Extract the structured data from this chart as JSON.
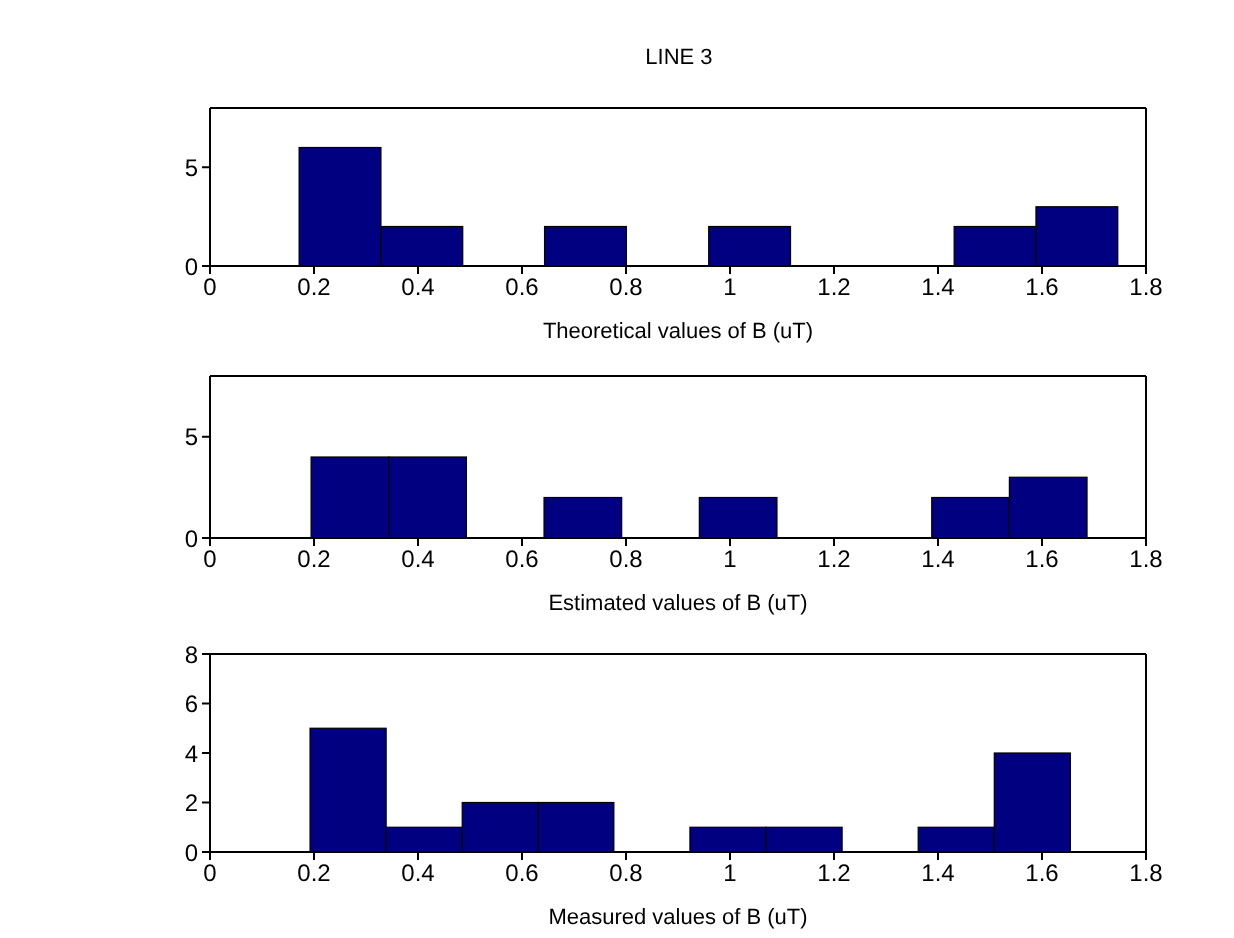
{
  "chart_data": [
    {
      "type": "histogram",
      "title": "LINE 3",
      "xlabel": "Theoretical values of B (uT)",
      "color": "#000080",
      "bins": [
        0.171,
        0.328,
        0.485,
        0.642,
        0.799,
        0.957,
        1.114,
        1.428,
        1.585,
        1.742
      ],
      "values": [
        6,
        2,
        0,
        2,
        0,
        2,
        0,
        2,
        3
      ],
      "xlim": [
        0,
        1.8
      ],
      "xticks": [
        0,
        0.2,
        0.4,
        0.6,
        0.8,
        1,
        1.2,
        1.4,
        1.6,
        1.8
      ],
      "ylim": [
        0,
        8
      ],
      "yticks": [
        0,
        5
      ]
    },
    {
      "type": "histogram",
      "xlabel": "Estimated values of B (uT)",
      "color": "#000080",
      "bins": [
        0.194,
        0.343,
        0.492,
        0.641,
        0.79,
        0.939,
        1.088,
        1.385,
        1.534,
        1.683
      ],
      "values": [
        4,
        4,
        0,
        2,
        0,
        2,
        0,
        2,
        3
      ],
      "xlim": [
        0,
        1.8
      ],
      "xticks": [
        0,
        0.2,
        0.4,
        0.6,
        0.8,
        1,
        1.2,
        1.4,
        1.6,
        1.8
      ],
      "ylim": [
        0,
        8
      ],
      "yticks": [
        0,
        5
      ]
    },
    {
      "type": "histogram",
      "xlabel": "Measured values of B (uT)",
      "color": "#000080",
      "bins": [
        0.192,
        0.338,
        0.484,
        0.63,
        0.775,
        0.921,
        1.067,
        1.213,
        1.359,
        1.505,
        1.651
      ],
      "values": [
        5,
        1,
        2,
        2,
        0,
        1,
        1,
        0,
        1,
        4
      ],
      "xlim": [
        0,
        1.8
      ],
      "xticks": [
        0,
        0.2,
        0.4,
        0.6,
        0.8,
        1,
        1.2,
        1.4,
        1.6,
        1.8
      ],
      "ylim": [
        0,
        8
      ],
      "yticks": [
        0,
        2,
        4,
        6,
        8
      ]
    }
  ]
}
